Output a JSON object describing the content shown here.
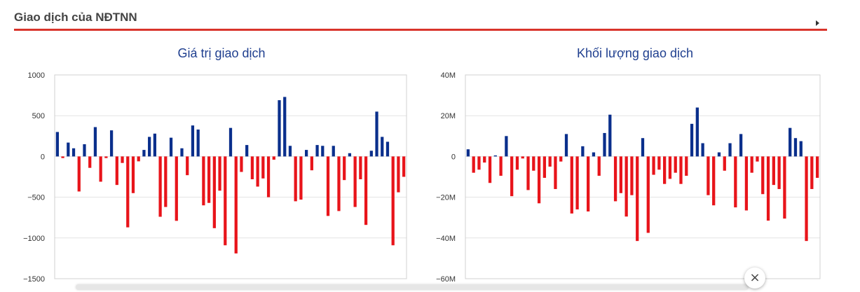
{
  "header": {
    "title": "Giao dịch của NĐTNN"
  },
  "colors": {
    "positive": "#0a2f8c",
    "negative": "#e8141a",
    "title": "#1f3f8f",
    "rule": "#d9342b"
  },
  "close_icon": "×",
  "chart_data": [
    {
      "type": "bar",
      "title": "Giá trị giao dịch",
      "ylim": [
        -1500,
        1000
      ],
      "yticks": [
        1000,
        500,
        0,
        -500,
        -1000,
        -1500
      ],
      "ytick_labels": [
        "1000",
        "500",
        "0",
        "−500",
        "−1000",
        "−1500"
      ],
      "grid": true,
      "values": [
        300,
        -20,
        170,
        100,
        -430,
        150,
        -140,
        360,
        -310,
        -20,
        320,
        -350,
        -80,
        -870,
        -450,
        -60,
        80,
        240,
        280,
        -740,
        -620,
        230,
        -790,
        100,
        -230,
        380,
        330,
        -600,
        -570,
        -880,
        -420,
        -1090,
        350,
        -1190,
        -190,
        140,
        -280,
        -370,
        -270,
        -500,
        -40,
        690,
        730,
        130,
        -550,
        -530,
        80,
        -170,
        140,
        130,
        -730,
        130,
        -670,
        -290,
        40,
        -620,
        -280,
        -840,
        70,
        550,
        240,
        180,
        -1090,
        -440,
        -250
      ]
    },
    {
      "type": "bar",
      "title": "Khối lượng giao dịch",
      "ylim": [
        -60,
        40
      ],
      "yticks": [
        40,
        20,
        0,
        -20,
        -40,
        -60
      ],
      "ytick_labels": [
        "40M",
        "20M",
        "0",
        "−20M",
        "−40M",
        "−60M"
      ],
      "grid": true,
      "values": [
        3.5,
        -8,
        -6.5,
        -3,
        -13,
        0.5,
        -9.5,
        10,
        -19.5,
        -6.5,
        -1,
        -16.5,
        -7,
        -23,
        -10.5,
        -5,
        -16,
        -2.5,
        11,
        -28,
        -26,
        5,
        -27,
        2,
        -9.5,
        11.5,
        20.5,
        -22,
        -18,
        -29.5,
        -19,
        -41.5,
        9,
        -37.5,
        -9,
        -6.5,
        -13.5,
        -11,
        -8,
        -13.5,
        -9.5,
        16,
        24,
        6.5,
        -19,
        -24,
        2,
        -7,
        6.5,
        -25,
        11,
        -26.5,
        -8,
        -2.5,
        -18.5,
        -31.5,
        -14,
        -16,
        -30.5,
        14,
        9,
        7.5,
        -41.5,
        -16,
        -10.5
      ]
    }
  ]
}
